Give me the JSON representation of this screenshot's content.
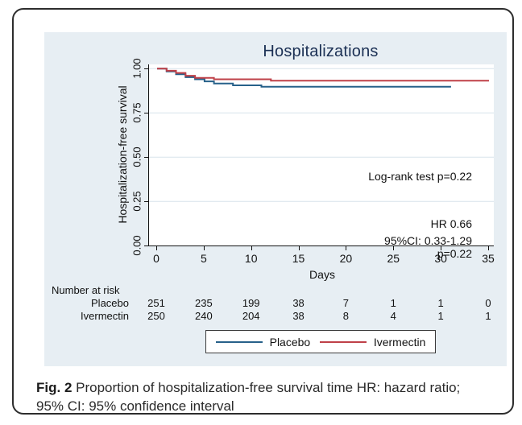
{
  "figure": {
    "caption_prefix": "Fig. 2",
    "caption_text": " Proportion of hospitalization-free survival time HR: hazard ratio; 95% CI: 95% confidence interval"
  },
  "colors": {
    "panel_bg": "#e7eef3",
    "grid": "#d7e3eb",
    "placebo": "#27618a",
    "ivermectin": "#bf4048",
    "title": "#1b3054"
  },
  "chart_data": {
    "type": "line",
    "subtype": "kaplan-meier-step",
    "title": "Hospitalizations",
    "xlabel": "Days",
    "ylabel": "Hospitalization-free survival",
    "xlim": [
      0,
      35
    ],
    "ylim": [
      0.0,
      1.0
    ],
    "xticks": [
      0,
      5,
      10,
      15,
      20,
      25,
      30,
      35
    ],
    "yticks": [
      "0.00",
      "0.25",
      "0.50",
      "0.75",
      "1.00"
    ],
    "grid": "horizontal",
    "legend_position": "bottom",
    "series": [
      {
        "name": "Placebo",
        "color": "#27618a",
        "steps": [
          [
            0,
            1.0
          ],
          [
            1,
            0.984
          ],
          [
            2,
            0.968
          ],
          [
            3,
            0.952
          ],
          [
            4,
            0.94
          ],
          [
            5,
            0.928
          ],
          [
            6,
            0.916
          ],
          [
            8,
            0.906
          ],
          [
            11,
            0.898
          ],
          [
            31,
            0.898
          ]
        ]
      },
      {
        "name": "Ivermectin",
        "color": "#bf4048",
        "steps": [
          [
            0,
            1.0
          ],
          [
            1,
            0.988
          ],
          [
            2,
            0.976
          ],
          [
            3,
            0.96
          ],
          [
            4,
            0.948
          ],
          [
            6,
            0.94
          ],
          [
            12,
            0.932
          ],
          [
            35,
            0.932
          ]
        ]
      }
    ],
    "annotations": {
      "logrank": "Log-rank test p=0.22",
      "hr": "HR 0.66",
      "ci": "95%CI: 0.33-1.29",
      "p": "p=0.22"
    },
    "number_at_risk": {
      "label": "Number at risk",
      "days": [
        0,
        5,
        10,
        15,
        20,
        25,
        30,
        35
      ],
      "rows": [
        {
          "name": "Placebo",
          "values": [
            251,
            235,
            199,
            38,
            7,
            1,
            1,
            0
          ]
        },
        {
          "name": "Ivermectin",
          "values": [
            250,
            240,
            204,
            38,
            8,
            4,
            1,
            1
          ]
        }
      ]
    }
  }
}
